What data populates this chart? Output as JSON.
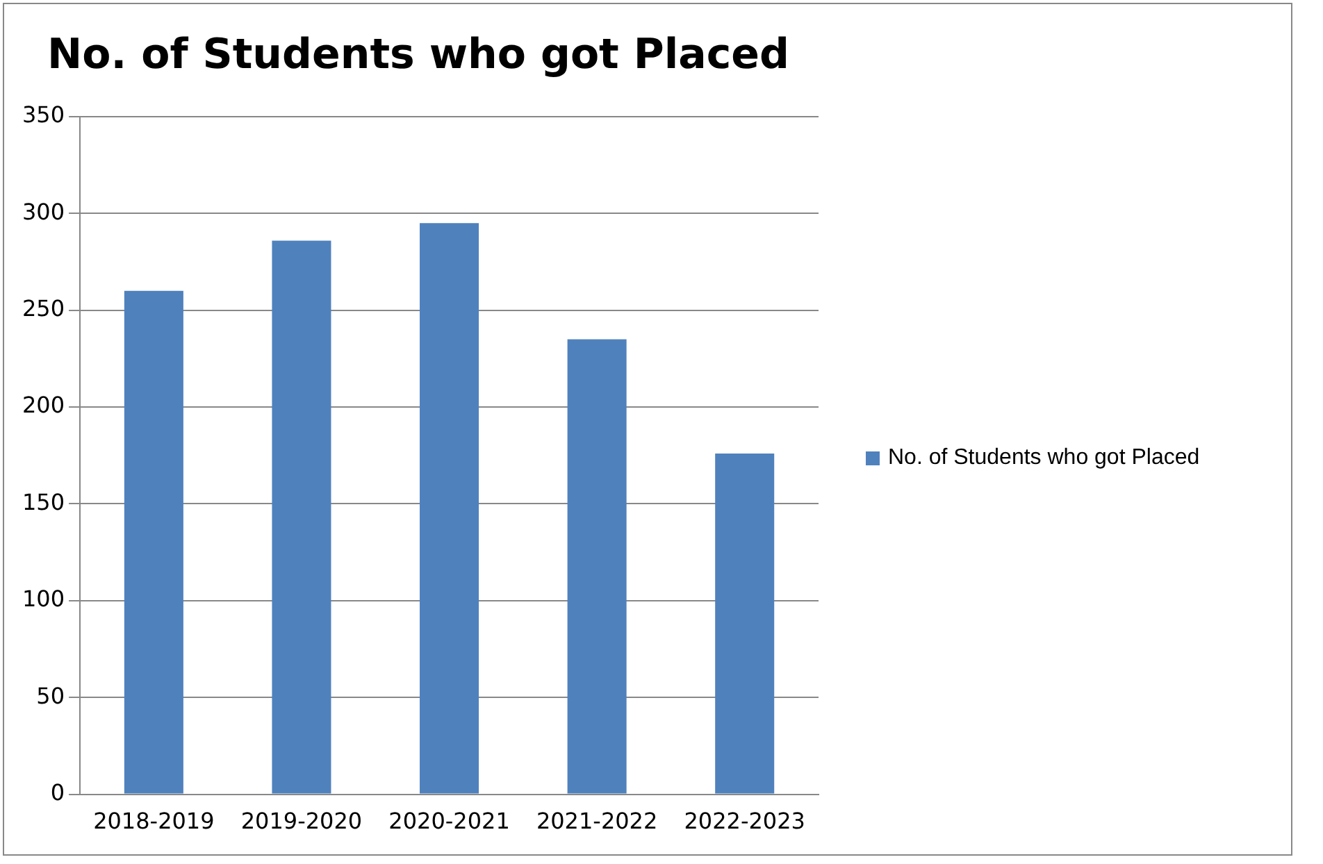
{
  "chart_data": {
    "type": "bar",
    "title": "No. of Students who got Placed",
    "categories": [
      "2018-2019",
      "2019-2020",
      "2020-2021",
      "2021-2022",
      "2022-2023"
    ],
    "series": [
      {
        "name": "No. of Students who got Placed",
        "color": "#4f81bd",
        "values": [
          260,
          286,
          295,
          235,
          176
        ]
      }
    ],
    "ylim": [
      0,
      350
    ],
    "yticks": [
      0,
      50,
      100,
      150,
      200,
      250,
      300,
      350
    ],
    "grid": "y",
    "legend": "right"
  }
}
